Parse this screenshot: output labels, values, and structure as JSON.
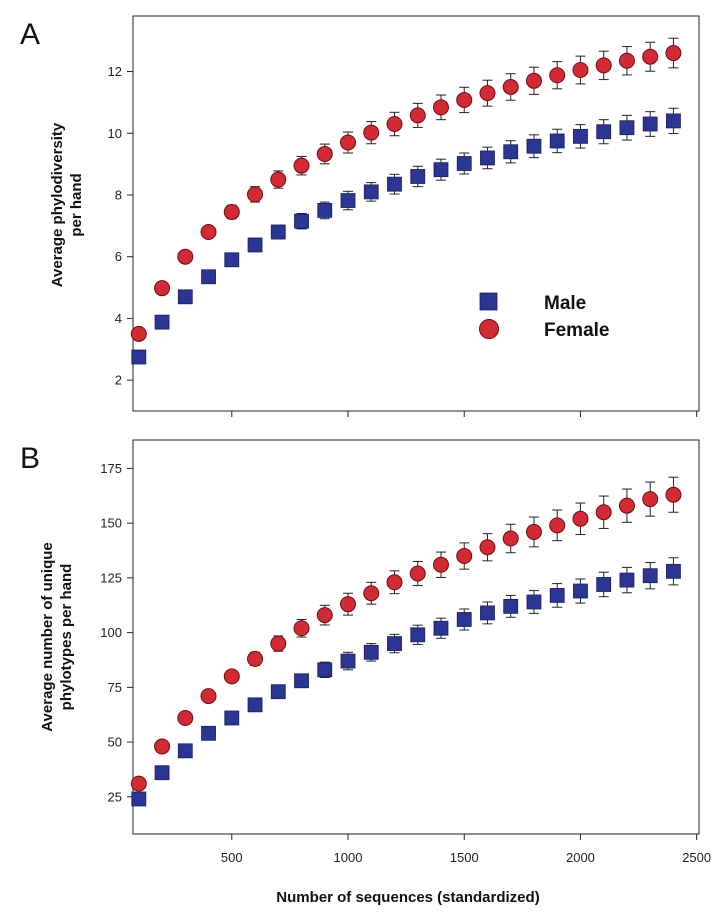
{
  "figure": {
    "xlabel": "Number of sequences (standardized)",
    "x_ticks": [
      500,
      1000,
      1500,
      2000,
      2500
    ],
    "colors": {
      "male": "#2b3593",
      "female": "#d42a33",
      "error": "#222222"
    }
  },
  "chart_data": [
    {
      "type": "scatter",
      "panel": "A",
      "title": "",
      "ylabel": "Average phylodiversity per hand",
      "ylabel_lines": [
        "Average phylodiversity",
        "per hand"
      ],
      "xlabel": "",
      "xlim": [
        75,
        2510
      ],
      "ylim": [
        1.0,
        13.8
      ],
      "y_ticks": [
        2,
        4,
        6,
        8,
        10,
        12
      ],
      "legend": {
        "position": "center-right",
        "entries": [
          "Male",
          "Female"
        ]
      },
      "x": [
        100,
        200,
        300,
        400,
        500,
        600,
        700,
        800,
        900,
        1000,
        1100,
        1200,
        1300,
        1400,
        1500,
        1600,
        1700,
        1800,
        1900,
        2000,
        2100,
        2200,
        2300,
        2400
      ],
      "series": [
        {
          "name": "Male",
          "marker": "square",
          "values": [
            2.75,
            3.88,
            4.7,
            5.35,
            5.9,
            6.38,
            6.8,
            7.15,
            7.5,
            7.82,
            8.1,
            8.35,
            8.6,
            8.82,
            9.02,
            9.2,
            9.4,
            9.58,
            9.75,
            9.9,
            10.05,
            10.18,
            10.3,
            10.4
          ],
          "error": [
            0.0,
            0.0,
            0.0,
            0.0,
            0.15,
            0.2,
            0.22,
            0.25,
            0.27,
            0.3,
            0.3,
            0.32,
            0.33,
            0.34,
            0.34,
            0.35,
            0.36,
            0.37,
            0.38,
            0.38,
            0.39,
            0.4,
            0.4,
            0.41
          ]
        },
        {
          "name": "Female",
          "marker": "circle",
          "values": [
            3.5,
            4.98,
            6.0,
            6.8,
            7.45,
            8.02,
            8.5,
            8.95,
            9.33,
            9.7,
            10.02,
            10.3,
            10.58,
            10.84,
            11.08,
            11.3,
            11.5,
            11.7,
            11.88,
            12.05,
            12.2,
            12.35,
            12.48,
            12.6
          ],
          "error": [
            0.0,
            0.0,
            0.1,
            0.18,
            0.22,
            0.25,
            0.28,
            0.3,
            0.32,
            0.34,
            0.36,
            0.38,
            0.39,
            0.4,
            0.41,
            0.42,
            0.43,
            0.44,
            0.44,
            0.45,
            0.46,
            0.46,
            0.47,
            0.48
          ]
        }
      ]
    },
    {
      "type": "scatter",
      "panel": "B",
      "title": "",
      "ylabel": "Average number of unique phylotypes per hand",
      "ylabel_lines": [
        "Average number of unique",
        "phylotypes per hand"
      ],
      "xlabel": "Number of sequences (standardized)",
      "xlim": [
        75,
        2510
      ],
      "ylim": [
        8,
        188
      ],
      "y_ticks": [
        25,
        50,
        75,
        100,
        125,
        150,
        175
      ],
      "legend": {
        "position": "none",
        "entries": []
      },
      "x": [
        100,
        200,
        300,
        400,
        500,
        600,
        700,
        800,
        900,
        1000,
        1100,
        1200,
        1300,
        1400,
        1500,
        1600,
        1700,
        1800,
        1900,
        2000,
        2100,
        2200,
        2300,
        2400
      ],
      "series": [
        {
          "name": "Male",
          "marker": "square",
          "values": [
            24,
            36,
            46,
            54,
            61,
            67,
            73,
            78,
            83,
            87,
            91,
            95,
            99,
            102,
            106,
            109,
            112,
            114,
            117,
            119,
            122,
            124,
            126,
            128
          ],
          "error": [
            0,
            0,
            0,
            0,
            1.5,
            2,
            2.5,
            3,
            3.5,
            4,
            4,
            4.2,
            4.4,
            4.6,
            4.8,
            5,
            5,
            5.2,
            5.4,
            5.5,
            5.6,
            5.8,
            6,
            6.2
          ]
        },
        {
          "name": "Female",
          "marker": "circle",
          "values": [
            31,
            48,
            61,
            71,
            80,
            88,
            95,
            102,
            108,
            113,
            118,
            123,
            127,
            131,
            135,
            139,
            143,
            146,
            149,
            152,
            155,
            158,
            161,
            163
          ],
          "error": [
            0,
            0,
            1.5,
            2,
            2.5,
            3,
            3.5,
            4,
            4.5,
            5,
            5,
            5.2,
            5.5,
            5.8,
            6,
            6.2,
            6.5,
            6.8,
            7,
            7.2,
            7.4,
            7.6,
            7.8,
            8
          ]
        }
      ]
    }
  ]
}
